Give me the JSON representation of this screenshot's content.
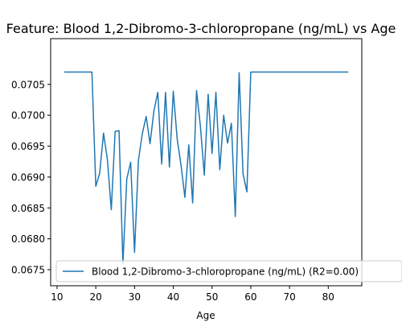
{
  "chart_data": {
    "type": "line",
    "title": "Feature: Blood 1,2-Dibromo-3-chloropropane (ng/mL) vs Age",
    "xlabel": "Age",
    "ylabel": "",
    "xlim": [
      8.35,
      88.65
    ],
    "ylim": [
      0.06724,
      0.07124
    ],
    "x_ticks": [
      "10",
      "20",
      "30",
      "40",
      "50",
      "60",
      "70",
      "80"
    ],
    "x_tick_values": [
      10,
      20,
      30,
      40,
      50,
      60,
      70,
      80
    ],
    "y_ticks": [
      "0.0675",
      "0.0680",
      "0.0685",
      "0.0690",
      "0.0695",
      "0.0700",
      "0.0705"
    ],
    "y_tick_values": [
      0.0675,
      0.068,
      0.0685,
      0.069,
      0.0695,
      0.07,
      0.0705
    ],
    "grid": false,
    "legend_placement": "lower-right",
    "series": [
      {
        "name": "Blood 1,2-Dibromo-3-chloropropane (ng/mL) (R2=0.00)",
        "color": "#1f77b4",
        "x": [
          12,
          13,
          14,
          15,
          16,
          17,
          18,
          19,
          20,
          21,
          22,
          23,
          24,
          25,
          26,
          27,
          28,
          29,
          30,
          31,
          32,
          33,
          34,
          35,
          36,
          37,
          38,
          39,
          40,
          41,
          42,
          43,
          44,
          45,
          46,
          47,
          48,
          49,
          50,
          51,
          52,
          53,
          54,
          55,
          56,
          57,
          58,
          59,
          60,
          61,
          62,
          63,
          64,
          65,
          66,
          67,
          68,
          69,
          70,
          71,
          72,
          73,
          74,
          75,
          76,
          77,
          78,
          79,
          80,
          81,
          82,
          83,
          84,
          85
        ],
        "y": [
          0.0707,
          0.0707,
          0.0707,
          0.0707,
          0.0707,
          0.0707,
          0.0707,
          0.0707,
          0.06885,
          0.06906,
          0.06971,
          0.06928,
          0.06847,
          0.06974,
          0.06975,
          0.0676,
          0.06897,
          0.06924,
          0.06778,
          0.06927,
          0.0697,
          0.06998,
          0.06954,
          0.07007,
          0.07037,
          0.06921,
          0.07037,
          0.06916,
          0.07039,
          0.06962,
          0.06919,
          0.06867,
          0.06952,
          0.06858,
          0.0704,
          0.06982,
          0.06903,
          0.07034,
          0.06938,
          0.07037,
          0.06912,
          0.07,
          0.06955,
          0.06987,
          0.06836,
          0.07069,
          0.06905,
          0.06876,
          0.0707,
          0.0707,
          0.0707,
          0.0707,
          0.0707,
          0.0707,
          0.0707,
          0.0707,
          0.0707,
          0.0707,
          0.0707,
          0.0707,
          0.0707,
          0.0707,
          0.0707,
          0.0707,
          0.0707,
          0.0707,
          0.0707,
          0.0707,
          0.0707,
          0.0707,
          0.0707,
          0.0707,
          0.0707,
          0.0707
        ]
      }
    ]
  }
}
